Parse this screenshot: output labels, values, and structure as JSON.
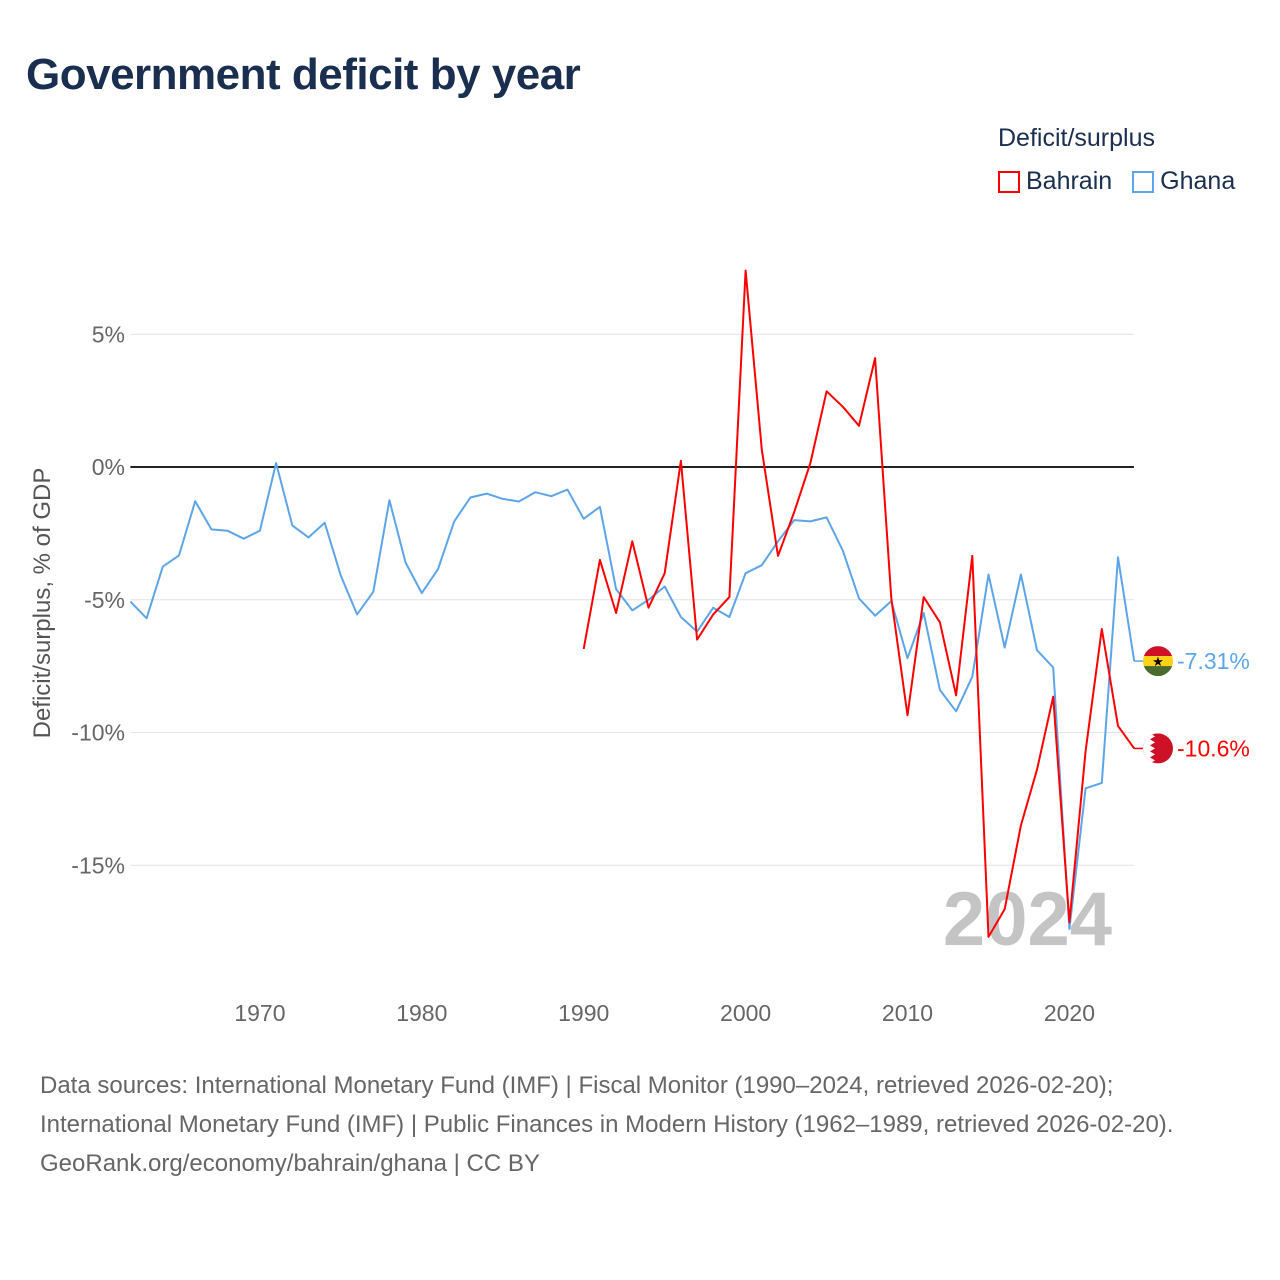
{
  "chart_data": {
    "type": "line",
    "title": "Government deficit by year",
    "xlabel": "",
    "ylabel": "Deficit/surplus, % of GDP",
    "xlim": [
      1962,
      2024
    ],
    "ylim": [
      -19,
      9
    ],
    "x_ticks": [
      1970,
      1980,
      1990,
      2000,
      2010,
      2020
    ],
    "y_ticks": [
      5,
      0,
      -5,
      -10,
      -15
    ],
    "y_tick_labels": [
      "5%",
      "0%",
      "-5%",
      "-10%",
      "-15%"
    ],
    "grid": true,
    "legend_title": "Deficit/surplus",
    "legend_placement": "top-right",
    "watermark_year": "2024",
    "series": [
      {
        "name": "Bahrain",
        "color": "#ff0000",
        "end_label": "-10.6%",
        "x": [
          1990,
          1991,
          1992,
          1993,
          1994,
          1995,
          1996,
          1997,
          1998,
          1999,
          2000,
          2001,
          2002,
          2003,
          2004,
          2005,
          2006,
          2007,
          2008,
          2009,
          2010,
          2011,
          2012,
          2013,
          2014,
          2015,
          2016,
          2017,
          2018,
          2019,
          2020,
          2021,
          2022,
          2023,
          2024
        ],
        "values": [
          -6.85,
          -3.5,
          -5.5,
          -2.8,
          -5.3,
          -4.0,
          0.23,
          -6.5,
          -5.55,
          -4.9,
          7.4,
          0.65,
          -3.35,
          -1.7,
          0.15,
          2.85,
          2.27,
          1.55,
          4.1,
          -4.95,
          -9.35,
          -4.9,
          -5.85,
          -8.6,
          -3.35,
          -17.7,
          -16.65,
          -13.5,
          -11.4,
          -8.65,
          -17.15,
          -10.7,
          -6.1,
          -9.75,
          -10.6
        ]
      },
      {
        "name": "Ghana",
        "color": "#5da5e8",
        "end_label": "-7.31%",
        "x": [
          1962,
          1963,
          1964,
          1965,
          1966,
          1967,
          1968,
          1969,
          1970,
          1971,
          1972,
          1973,
          1974,
          1975,
          1976,
          1977,
          1978,
          1979,
          1980,
          1981,
          1982,
          1983,
          1984,
          1985,
          1986,
          1987,
          1988,
          1989,
          1990,
          1991,
          1992,
          1993,
          1994,
          1995,
          1996,
          1997,
          1998,
          1999,
          2000,
          2001,
          2002,
          2003,
          2004,
          2005,
          2006,
          2007,
          2008,
          2009,
          2010,
          2011,
          2012,
          2013,
          2014,
          2015,
          2016,
          2017,
          2018,
          2019,
          2020,
          2021,
          2022,
          2023,
          2024
        ],
        "values": [
          -5.07,
          -5.7,
          -3.75,
          -3.33,
          -1.29,
          -2.35,
          -2.4,
          -2.7,
          -2.4,
          0.15,
          -2.2,
          -2.65,
          -2.1,
          -4.1,
          -5.55,
          -4.7,
          -1.25,
          -3.6,
          -4.75,
          -3.85,
          -2.05,
          -1.15,
          -1.0,
          -1.2,
          -1.3,
          -0.95,
          -1.1,
          -0.85,
          -1.95,
          -1.5,
          -4.6,
          -5.4,
          -5.0,
          -4.5,
          -5.65,
          -6.2,
          -5.3,
          -5.65,
          -4.0,
          -3.7,
          -2.8,
          -2.0,
          -2.05,
          -1.9,
          -3.15,
          -4.95,
          -5.6,
          -5.05,
          -7.2,
          -5.5,
          -8.4,
          -9.2,
          -7.9,
          -4.05,
          -6.8,
          -4.05,
          -6.9,
          -7.55,
          -17.4,
          -12.1,
          -11.9,
          -3.4,
          -7.31
        ]
      }
    ]
  },
  "footer": {
    "sources": "Data sources: International Monetary Fund (IMF) | Fiscal Monitor (1990–2024, retrieved 2026-02-20); International Monetary Fund (IMF) | Public Finances in Modern History (1962–1989, retrieved 2026-02-20).",
    "credit": "GeoRank.org/economy/bahrain/ghana | CC BY"
  }
}
